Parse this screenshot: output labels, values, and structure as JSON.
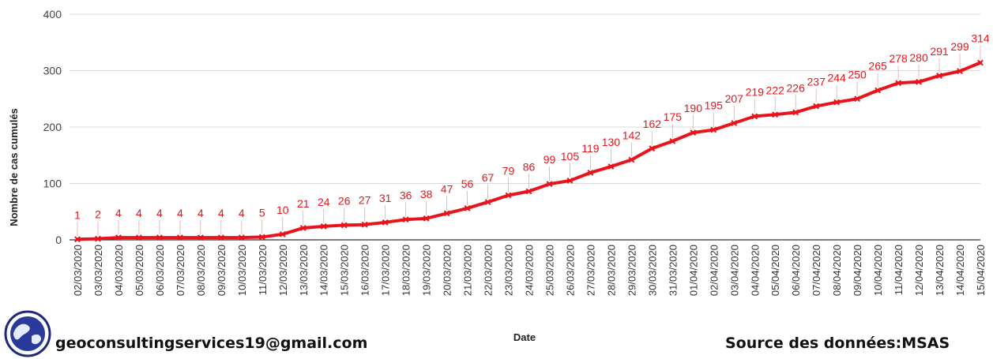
{
  "chart_data": {
    "type": "line",
    "xlabel": "Date",
    "ylabel": "Nombre de cas cumulés",
    "ylim": [
      0,
      400
    ],
    "yticks": [
      0,
      100,
      200,
      300,
      400
    ],
    "grid": true,
    "color": "#e8141b",
    "categories": [
      "02/03/2020",
      "03/03/2020",
      "04/03/2020",
      "05/03/2020",
      "06/03/2020",
      "07/03/2020",
      "08/03/2020",
      "09/03/2020",
      "10/03/2020",
      "11/03/2020",
      "12/03/2020",
      "13/03/2020",
      "14/03/2020",
      "15/03/2020",
      "16/03/2020",
      "17/03/2020",
      "18/03/2020",
      "19/03/2020",
      "20/03/2020",
      "21/03/2020",
      "22/03/2020",
      "23/03/2020",
      "24/03/2020",
      "25/03/2020",
      "26/03/2020",
      "27/03/2020",
      "28/03/2020",
      "29/03/2020",
      "30/03/2020",
      "31/03/2020",
      "01/04/2020",
      "02/04/2020",
      "03/04/2020",
      "04/04/2020",
      "05/04/2020",
      "06/04/2020",
      "07/04/2020",
      "08/04/2020",
      "09/04/2020",
      "10/04/2020",
      "11/04/2020",
      "12/04/2020",
      "13/04/2020",
      "14/04/2020",
      "15/04/2020"
    ],
    "values": [
      1,
      2,
      4,
      4,
      4,
      4,
      4,
      4,
      4,
      5,
      10,
      21,
      24,
      26,
      27,
      31,
      36,
      38,
      47,
      56,
      67,
      79,
      86,
      99,
      105,
      119,
      130,
      142,
      162,
      175,
      190,
      195,
      207,
      219,
      222,
      226,
      237,
      244,
      250,
      265,
      278,
      280,
      291,
      299,
      314
    ]
  },
  "footer": {
    "email": "geoconsultingservices19@gmail.com",
    "source": "Source des données:MSAS"
  }
}
